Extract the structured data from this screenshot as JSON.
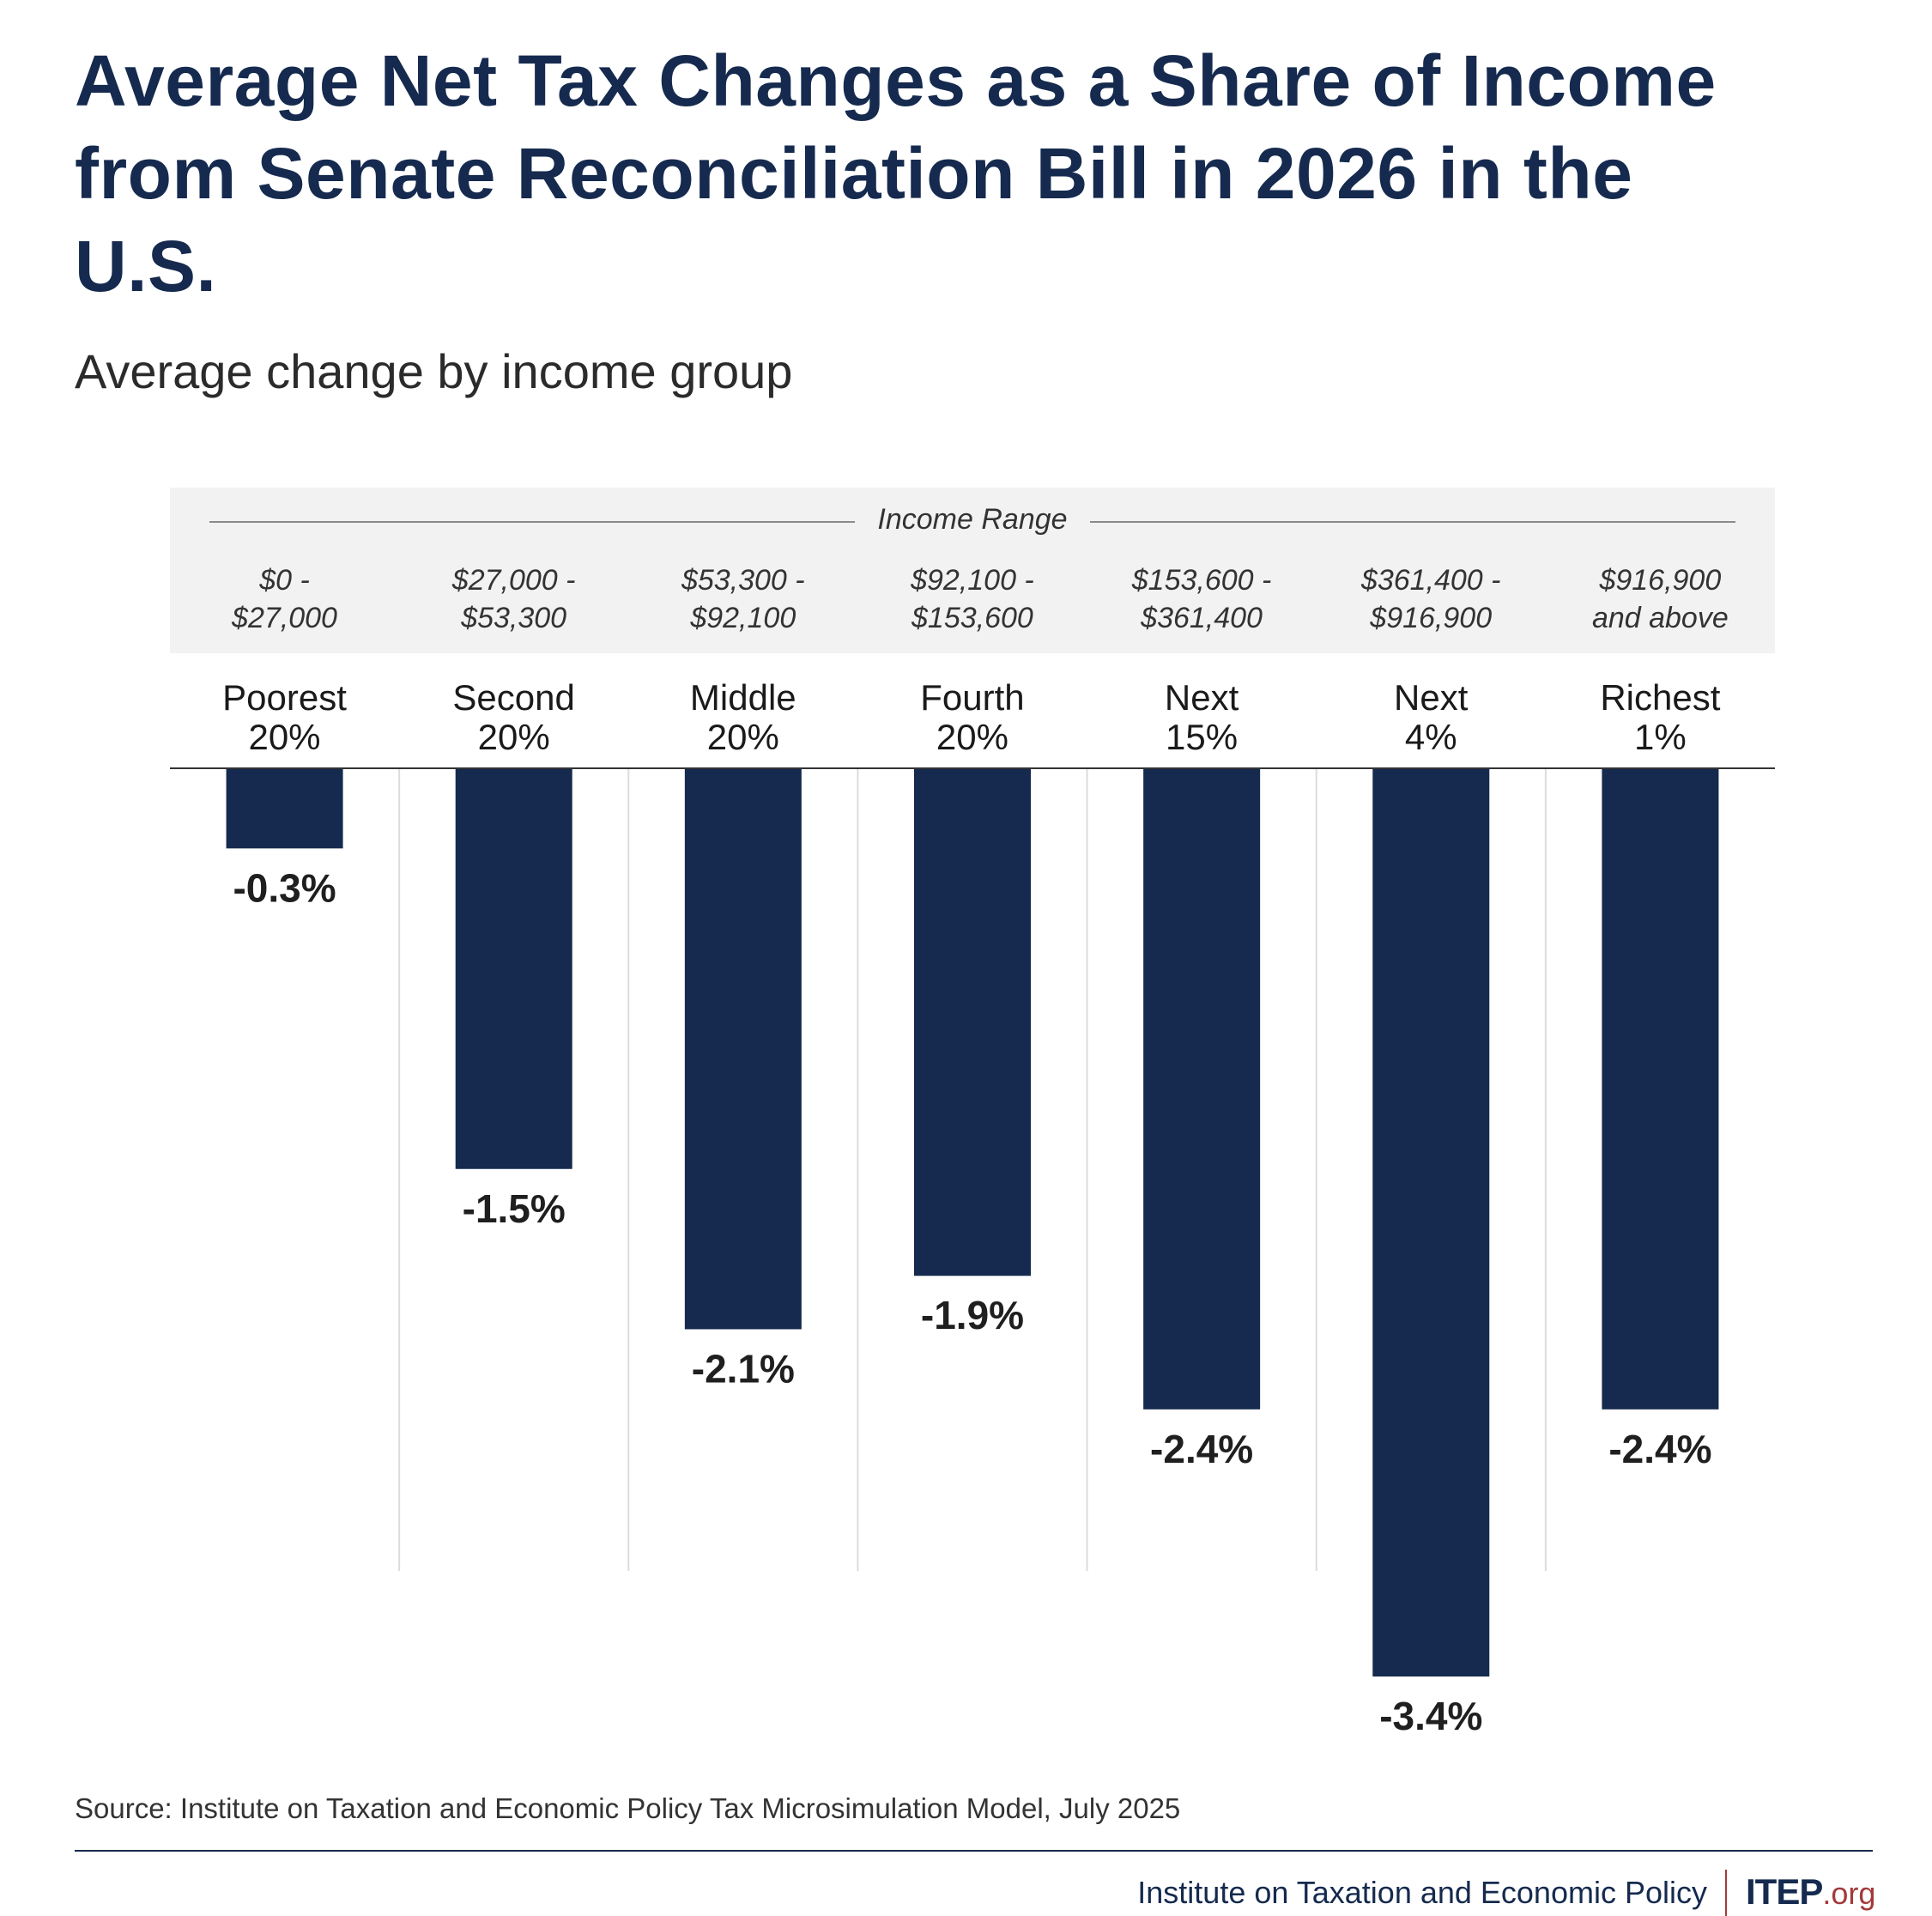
{
  "header": {
    "title": "Average Net Tax Changes as a Share of Income from Senate Reconciliation Bill in 2026 in the U.S.",
    "subtitle": "Average change by income group"
  },
  "income_range_heading": "Income Range",
  "colors": {
    "bar": "#152a4e",
    "title": "#152a4e",
    "band": "#f2f2f2",
    "accent": "#a33a3a"
  },
  "chart_data": {
    "type": "bar",
    "categories": [
      "Poorest 20%",
      "Second 20%",
      "Middle 20%",
      "Fourth 20%",
      "Next 15%",
      "Next 4%",
      "Richest 1%"
    ],
    "category_lines": [
      [
        "Poorest",
        "20%"
      ],
      [
        "Second",
        "20%"
      ],
      [
        "Middle",
        "20%"
      ],
      [
        "Fourth",
        "20%"
      ],
      [
        "Next",
        "15%"
      ],
      [
        "Next",
        "4%"
      ],
      [
        "Richest",
        "1%"
      ]
    ],
    "income_ranges": [
      [
        "$0 -",
        "$27,000"
      ],
      [
        "$27,000 -",
        "$53,300"
      ],
      [
        "$53,300 -",
        "$92,100"
      ],
      [
        "$92,100 -",
        "$153,600"
      ],
      [
        "$153,600 -",
        "$361,400"
      ],
      [
        "$361,400 -",
        "$916,900"
      ],
      [
        "$916,900",
        "and above"
      ]
    ],
    "values": [
      -0.3,
      -1.5,
      -2.1,
      -1.9,
      -2.4,
      -3.4,
      -2.4
    ],
    "value_labels": [
      "-0.3%",
      "-1.5%",
      "-2.1%",
      "-1.9%",
      "-2.4%",
      "-3.4%",
      "-2.4%"
    ],
    "title": "Average Net Tax Changes as a Share of Income from Senate Reconciliation Bill in 2026 in the U.S.",
    "subtitle": "Average change by income group",
    "xlabel": "",
    "ylabel": "",
    "ylim": [
      -3.4,
      0
    ],
    "grid": false
  },
  "footer": {
    "source": "Source: Institute on Taxation and Economic Policy Tax Microsimulation Model, July 2025",
    "organization": "Institute on Taxation and Economic Policy",
    "logo_main": "ITEP",
    "logo_tld": ".org"
  }
}
